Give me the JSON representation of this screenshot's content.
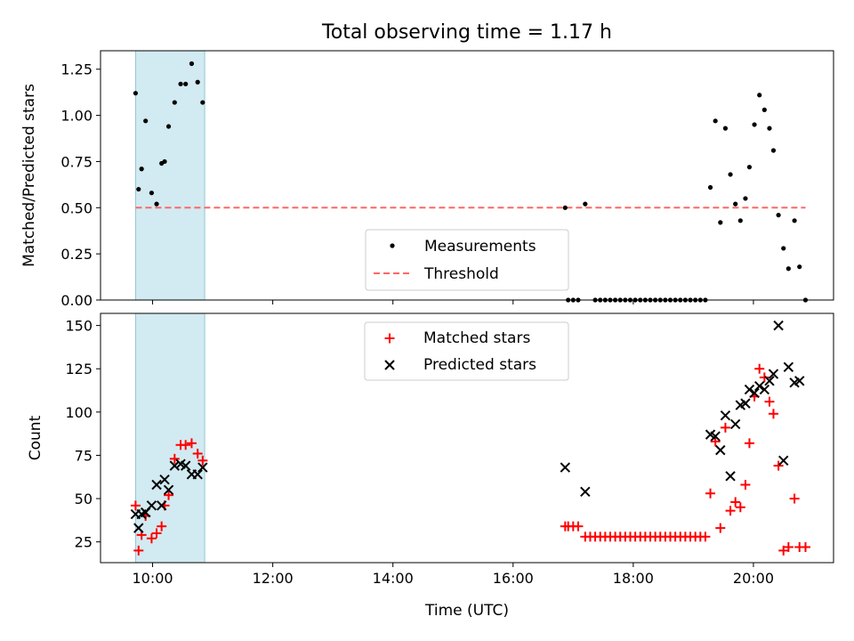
{
  "title": "Total observing time = 1.17 h",
  "chart_data": [
    {
      "type": "scatter",
      "ylabel": "Matched/Predicted stars",
      "xlabel": "",
      "xlim": [
        "09:08",
        "21:20"
      ],
      "ylim": [
        0,
        1.35
      ],
      "x_ticks": [
        "10:00",
        "12:00",
        "14:00",
        "16:00",
        "18:00",
        "20:00"
      ],
      "y_ticks": [
        "0.00",
        "0.25",
        "0.50",
        "0.75",
        "1.00",
        "1.25"
      ],
      "y_tick_values": [
        0,
        0.25,
        0.5,
        0.75,
        1.0,
        1.25
      ],
      "highlight_span": [
        "09:43",
        "10:52"
      ],
      "highlight_color": "#add8e6",
      "threshold": {
        "value": 0.5,
        "x_range": [
          "09:43",
          "20:52"
        ],
        "color": "#ff6666"
      },
      "legend_position": "lower center",
      "series": [
        {
          "name": "Measurements",
          "color": "#000000",
          "marker": "dot",
          "points": [
            [
              "09:43",
              1.12
            ],
            [
              "09:46",
              0.6
            ],
            [
              "09:49",
              0.71
            ],
            [
              "09:53",
              0.97
            ],
            [
              "09:59",
              0.58
            ],
            [
              "10:04",
              0.52
            ],
            [
              "10:09",
              0.74
            ],
            [
              "10:12",
              0.75
            ],
            [
              "10:16",
              0.94
            ],
            [
              "10:22",
              1.07
            ],
            [
              "10:28",
              1.17
            ],
            [
              "10:33",
              1.17
            ],
            [
              "10:39",
              1.28
            ],
            [
              "10:45",
              1.18
            ],
            [
              "10:50",
              1.07
            ],
            [
              "16:52",
              0.5
            ],
            [
              "16:55",
              0.0
            ],
            [
              "17:00",
              0.0
            ],
            [
              "17:05",
              0.0
            ],
            [
              "17:12",
              0.52
            ],
            [
              "17:22",
              0.0
            ],
            [
              "17:27",
              0.0
            ],
            [
              "17:32",
              0.0
            ],
            [
              "17:37",
              0.0
            ],
            [
              "17:42",
              0.0
            ],
            [
              "17:47",
              0.0
            ],
            [
              "17:52",
              0.0
            ],
            [
              "17:57",
              0.0
            ],
            [
              "18:02",
              0.0
            ],
            [
              "18:07",
              0.0
            ],
            [
              "18:12",
              0.0
            ],
            [
              "18:17",
              0.0
            ],
            [
              "18:22",
              0.0
            ],
            [
              "18:27",
              0.0
            ],
            [
              "18:32",
              0.0
            ],
            [
              "18:37",
              0.0
            ],
            [
              "18:42",
              0.0
            ],
            [
              "18:47",
              0.0
            ],
            [
              "18:52",
              0.0
            ],
            [
              "18:57",
              0.0
            ],
            [
              "19:02",
              0.0
            ],
            [
              "19:07",
              0.0
            ],
            [
              "19:12",
              0.0
            ],
            [
              "19:17",
              0.61
            ],
            [
              "19:22",
              0.97
            ],
            [
              "19:27",
              0.42
            ],
            [
              "19:32",
              0.93
            ],
            [
              "19:37",
              0.68
            ],
            [
              "19:42",
              0.52
            ],
            [
              "19:47",
              0.43
            ],
            [
              "19:52",
              0.55
            ],
            [
              "19:56",
              0.72
            ],
            [
              "20:01",
              0.95
            ],
            [
              "20:06",
              1.11
            ],
            [
              "20:11",
              1.03
            ],
            [
              "20:16",
              0.93
            ],
            [
              "20:20",
              0.81
            ],
            [
              "20:25",
              0.46
            ],
            [
              "20:30",
              0.28
            ],
            [
              "20:35",
              0.17
            ],
            [
              "20:41",
              0.43
            ],
            [
              "20:46",
              0.18
            ],
            [
              "20:52",
              0.0
            ]
          ]
        },
        {
          "name": "Threshold",
          "color": "#ff6666",
          "line_style": "dashed"
        }
      ]
    },
    {
      "type": "scatter",
      "ylabel": "Count",
      "xlabel": "Time (UTC)",
      "xlim": [
        "09:08",
        "21:20"
      ],
      "ylim": [
        13,
        157
      ],
      "x_ticks": [
        "10:00",
        "12:00",
        "14:00",
        "16:00",
        "18:00",
        "20:00"
      ],
      "y_ticks": [
        "25",
        "50",
        "75",
        "100",
        "125",
        "150"
      ],
      "y_tick_values": [
        25,
        50,
        75,
        100,
        125,
        150
      ],
      "highlight_span": [
        "09:43",
        "10:52"
      ],
      "highlight_color": "#add8e6",
      "legend_position": "upper center",
      "series": [
        {
          "name": "Matched stars",
          "color": "#ff0000",
          "marker": "plus",
          "points": [
            [
              "09:43",
              46
            ],
            [
              "09:46",
              20
            ],
            [
              "09:49",
              29
            ],
            [
              "09:53",
              40
            ],
            [
              "09:59",
              27
            ],
            [
              "10:04",
              30
            ],
            [
              "10:09",
              34
            ],
            [
              "10:12",
              46
            ],
            [
              "10:16",
              52
            ],
            [
              "10:22",
              73
            ],
            [
              "10:28",
              81
            ],
            [
              "10:33",
              81
            ],
            [
              "10:39",
              82
            ],
            [
              "10:45",
              76
            ],
            [
              "10:50",
              72
            ],
            [
              "16:52",
              34
            ],
            [
              "16:55",
              34
            ],
            [
              "17:00",
              34
            ],
            [
              "17:05",
              34
            ],
            [
              "17:12",
              28
            ],
            [
              "17:17",
              28
            ],
            [
              "17:22",
              28
            ],
            [
              "17:27",
              28
            ],
            [
              "17:32",
              28
            ],
            [
              "17:37",
              28
            ],
            [
              "17:42",
              28
            ],
            [
              "17:47",
              28
            ],
            [
              "17:52",
              28
            ],
            [
              "17:57",
              28
            ],
            [
              "18:02",
              28
            ],
            [
              "18:07",
              28
            ],
            [
              "18:12",
              28
            ],
            [
              "18:17",
              28
            ],
            [
              "18:22",
              28
            ],
            [
              "18:27",
              28
            ],
            [
              "18:32",
              28
            ],
            [
              "18:37",
              28
            ],
            [
              "18:42",
              28
            ],
            [
              "18:47",
              28
            ],
            [
              "18:52",
              28
            ],
            [
              "18:57",
              28
            ],
            [
              "19:02",
              28
            ],
            [
              "19:07",
              28
            ],
            [
              "19:12",
              28
            ],
            [
              "19:17",
              53
            ],
            [
              "19:22",
              83
            ],
            [
              "19:27",
              33
            ],
            [
              "19:32",
              91
            ],
            [
              "19:37",
              43
            ],
            [
              "19:42",
              48
            ],
            [
              "19:47",
              45
            ],
            [
              "19:52",
              58
            ],
            [
              "19:56",
              82
            ],
            [
              "20:01",
              109
            ],
            [
              "20:06",
              125
            ],
            [
              "20:11",
              120
            ],
            [
              "20:16",
              106
            ],
            [
              "20:20",
              99
            ],
            [
              "20:25",
              69
            ],
            [
              "20:30",
              20
            ],
            [
              "20:35",
              22
            ],
            [
              "20:41",
              50
            ],
            [
              "20:46",
              22
            ],
            [
              "20:52",
              22
            ]
          ]
        },
        {
          "name": "Predicted stars",
          "color": "#000000",
          "marker": "x",
          "points": [
            [
              "09:43",
              41
            ],
            [
              "09:46",
              33
            ],
            [
              "09:49",
              41
            ],
            [
              "09:53",
              42
            ],
            [
              "09:59",
              46
            ],
            [
              "10:04",
              58
            ],
            [
              "10:09",
              46
            ],
            [
              "10:12",
              61
            ],
            [
              "10:16",
              55
            ],
            [
              "10:22",
              69
            ],
            [
              "10:28",
              70
            ],
            [
              "10:33",
              69
            ],
            [
              "10:39",
              64
            ],
            [
              "10:45",
              64
            ],
            [
              "10:50",
              68
            ],
            [
              "16:52",
              68
            ],
            [
              "17:12",
              54
            ],
            [
              "19:17",
              87
            ],
            [
              "19:22",
              86
            ],
            [
              "19:27",
              78
            ],
            [
              "19:32",
              98
            ],
            [
              "19:37",
              63
            ],
            [
              "19:42",
              93
            ],
            [
              "19:47",
              104
            ],
            [
              "19:52",
              105
            ],
            [
              "19:56",
              113
            ],
            [
              "20:01",
              111
            ],
            [
              "20:06",
              115
            ],
            [
              "20:11",
              113
            ],
            [
              "20:16",
              118
            ],
            [
              "20:20",
              122
            ],
            [
              "20:25",
              150
            ],
            [
              "20:30",
              72
            ],
            [
              "20:35",
              126
            ],
            [
              "20:41",
              117
            ],
            [
              "20:46",
              118
            ]
          ]
        }
      ]
    }
  ]
}
